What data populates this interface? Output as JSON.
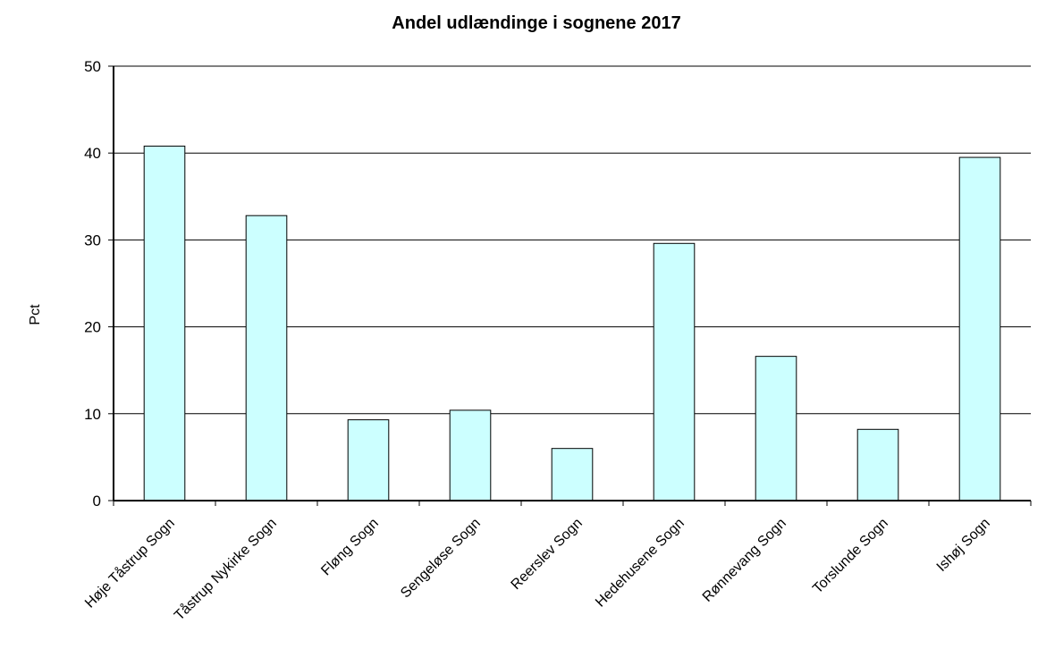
{
  "chart_data": {
    "type": "bar",
    "title": "Andel udlændinge i sognene 2017",
    "xlabel": "",
    "ylabel": "Pct",
    "ylim": [
      0,
      50
    ],
    "yticks": [
      0,
      10,
      20,
      30,
      40,
      50
    ],
    "grid": true,
    "legend": "none",
    "categories": [
      "Høje Tåstrup Sogn",
      "Tåstrup Nykirke Sogn",
      "Fløng Sogn",
      "Sengeløse Sogn",
      "Reerslev Sogn",
      "Hedehusene Sogn",
      "Rønnevang Sogn",
      "Torslunde Sogn",
      "Ishøj Sogn"
    ],
    "values": [
      40.8,
      32.8,
      9.3,
      10.4,
      6.0,
      29.6,
      16.6,
      8.2,
      39.5
    ],
    "colors": {
      "bar_fill": "#CCFFFF",
      "bar_stroke": "#000000",
      "gridline": "#000000",
      "axis": "#000000"
    }
  }
}
